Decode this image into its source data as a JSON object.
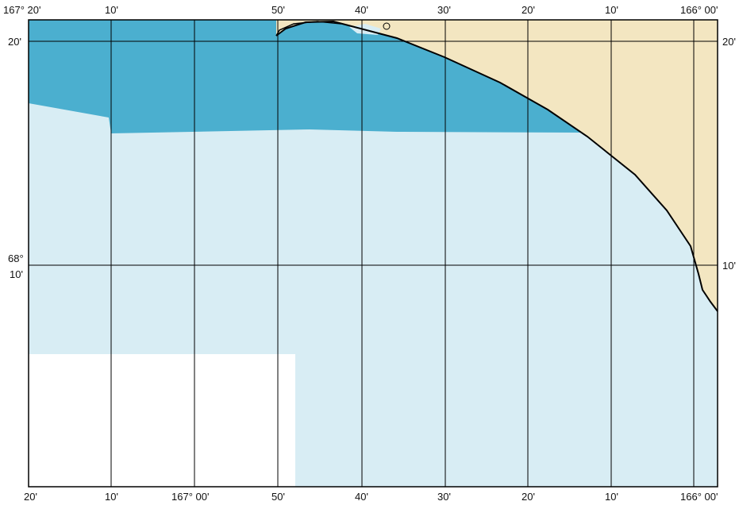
{
  "map": {
    "colors": {
      "land": "#f3e6c1",
      "deep_water": "#4bafcf",
      "shallow_water": "#d8edf4",
      "no_data": "#ffffff",
      "coastline": "#000000",
      "grid": "#000000"
    },
    "top_labels": [
      "167° 20'",
      "10'",
      "50'",
      "40'",
      "30'",
      "20'",
      "10'",
      "166° 00'"
    ],
    "bottom_labels": [
      "20'",
      "10'",
      "167° 00'",
      "50'",
      "40'",
      "30'",
      "20'",
      "10'",
      "166° 00'"
    ],
    "left_labels": [
      "20'",
      "68°",
      "10'"
    ],
    "right_labels": [
      "20'",
      "10'"
    ]
  }
}
